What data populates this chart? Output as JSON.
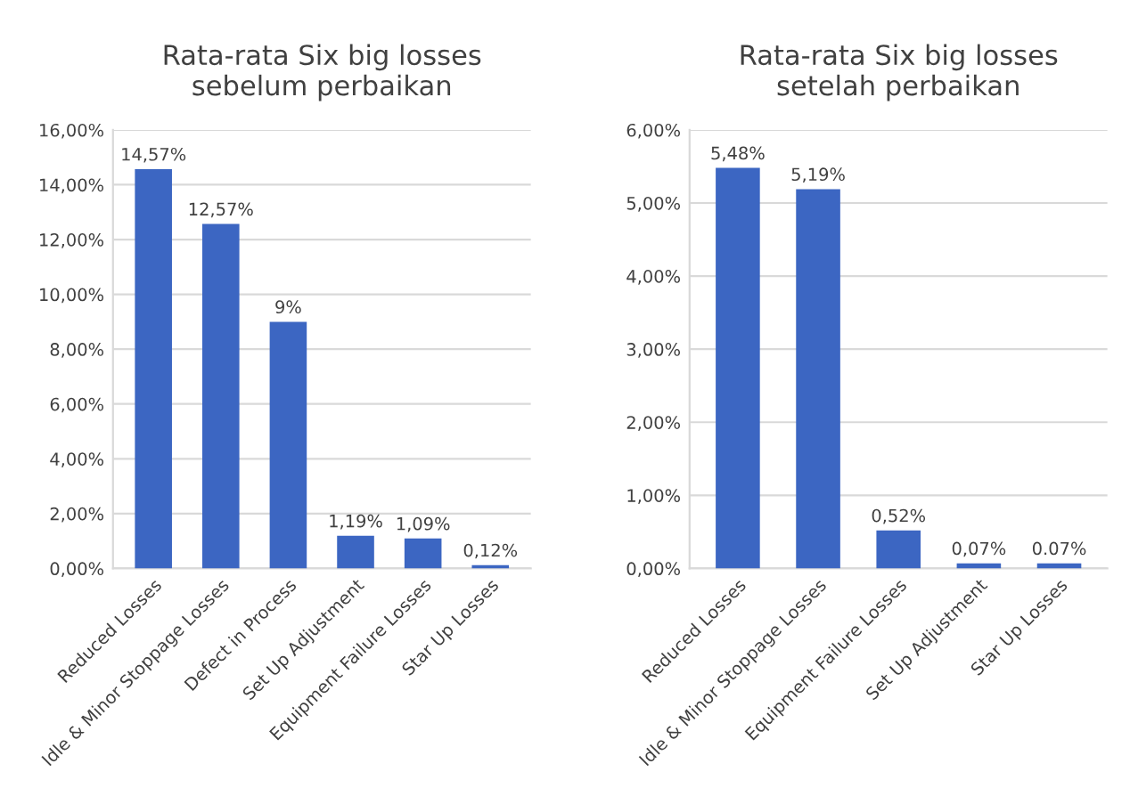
{
  "chart_data": [
    {
      "type": "bar",
      "title": "Rata-rata Six big losses\nsebelum perbaikan",
      "categories": [
        "Reduced Losses",
        "Idle & Minor Stoppage Losses",
        "Defect in Process",
        "Set Up Adjustment",
        "Equipment Failure Losses",
        "Star Up Losses"
      ],
      "values": [
        14.57,
        12.57,
        9,
        1.19,
        1.09,
        0.12
      ],
      "value_labels": [
        "14,57%",
        "12,57%",
        "9%",
        "1,19%",
        "1,09%",
        "0,12%"
      ],
      "color": "#3c66c2",
      "ylim": [
        0,
        16
      ],
      "yticks": [
        {
          "value": 0,
          "label": "0,00%"
        },
        {
          "value": 2,
          "label": "2,00%"
        },
        {
          "value": 4,
          "label": "4,00%"
        },
        {
          "value": 6,
          "label": "6,00%"
        },
        {
          "value": 8,
          "label": "8,00%"
        },
        {
          "value": 10,
          "label": "10,00%"
        },
        {
          "value": 12,
          "label": "12,00%"
        },
        {
          "value": 14,
          "label": "14,00%"
        },
        {
          "value": 16,
          "label": "16,00%"
        }
      ],
      "grid": "y"
    },
    {
      "type": "bar",
      "title": "Rata-rata Six big losses\nsetelah perbaikan",
      "categories": [
        "Reduced Losses",
        "Idle & Minor Stoppage Losses",
        "Equipment Failure Losses",
        "Set Up Adjustment",
        "Star Up Losses"
      ],
      "values": [
        5.48,
        5.19,
        0.52,
        0.07,
        0.07
      ],
      "value_labels": [
        "5,48%",
        "5,19%",
        "0,52%",
        "0,07%",
        "0.07%"
      ],
      "color": "#3c66c2",
      "ylim": [
        0,
        6
      ],
      "yticks": [
        {
          "value": 0,
          "label": "0,00%"
        },
        {
          "value": 1,
          "label": "1,00%"
        },
        {
          "value": 2,
          "label": "2,00%"
        },
        {
          "value": 3,
          "label": "3,00%"
        },
        {
          "value": 4,
          "label": "4,00%"
        },
        {
          "value": 5,
          "label": "5,00%"
        },
        {
          "value": 6,
          "label": "6,00%"
        }
      ],
      "grid": "y"
    }
  ]
}
